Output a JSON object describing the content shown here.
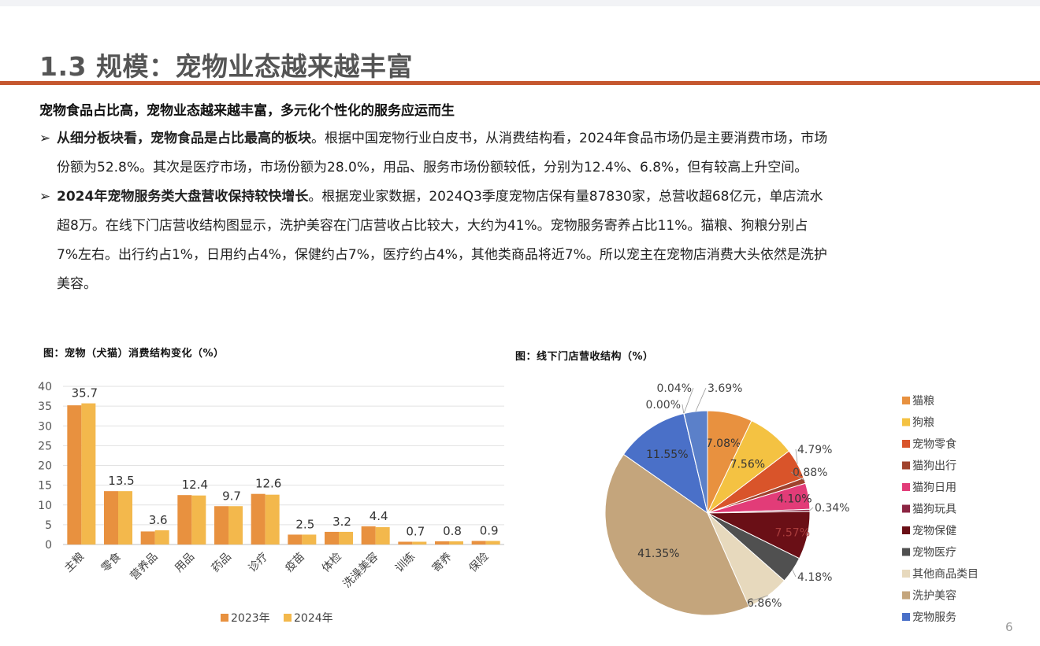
{
  "slide": {
    "title": "1.3 规模：宠物业态越来越丰富",
    "intro_heading": "宠物食品占比高，宠物业态越来越丰富，多元化个性化的服务应运而生",
    "bullets": [
      {
        "marker": "➢",
        "lead": "从细分板块看，宠物食品是占比最高的板块",
        "line1": "。根据中国宠物行业白皮书，从消费结构看，2024年食品市场仍是主要消费市场，市场",
        "rest": [
          "份额为52.8%。其次是医疗市场，市场份额为28.0%，用品、服务市场份额较低，分别为12.4%、6.8%，但有较高上升空间。"
        ]
      },
      {
        "marker": "➢",
        "lead": "2024年宠物服务类大盘营收保持较快增长",
        "line1": "。根据宠业家数据，2024Q3季度宠物店保有量87830家，总营收超68亿元，单店流水",
        "rest": [
          "超8万。在线下门店营收结构图显示，洗护美容在门店营收占比较大，大约为41%。宠物服务寄养占比11%。猫粮、狗粮分别占",
          "7%左右。出行约占1%，日用约占4%，保健约占7%，医疗约占4%，其他类商品将近7%。所以宠主在宠物店消费大头依然是洗护",
          "美容。"
        ]
      }
    ],
    "page_number": "6"
  },
  "chart_data": [
    {
      "type": "bar",
      "title": "图：宠物（犬猫）消费结构变化（%）",
      "categories": [
        "主粮",
        "零食",
        "营养品",
        "用品",
        "药品",
        "诊疗",
        "疫苗",
        "体检",
        "洗澡美容",
        "训练",
        "寄养",
        "保险"
      ],
      "series": [
        {
          "name": "2023年",
          "color": "#e8913f",
          "values": [
            35.2,
            13.5,
            3.3,
            12.5,
            9.7,
            12.8,
            2.5,
            3.2,
            4.6,
            0.7,
            0.8,
            0.9
          ]
        },
        {
          "name": "2024年",
          "color": "#f3b84c",
          "values": [
            35.7,
            13.5,
            3.6,
            12.4,
            9.7,
            12.6,
            2.5,
            3.2,
            4.4,
            0.7,
            0.8,
            0.9
          ]
        }
      ],
      "data_labels": [
        "35.7",
        "13.5",
        "3.6",
        "12.4",
        "9.7",
        "12.6",
        "2.5",
        "3.2",
        "4.4",
        "0.7",
        "0.8",
        "0.9"
      ],
      "ylim": [
        0,
        40
      ],
      "yticks": [
        "0",
        "5",
        "10",
        "15",
        "20",
        "25",
        "30",
        "35",
        "40"
      ],
      "grid": true,
      "legend_position": "bottom"
    },
    {
      "type": "pie",
      "title": "图：线下门店营收结构（%）",
      "slices": [
        {
          "name": "猫粮",
          "value": 7.08,
          "label": "7.08%",
          "color": "#e8913f"
        },
        {
          "name": "狗粮",
          "value": 7.56,
          "label": "7.56%",
          "color": "#f4c242"
        },
        {
          "name": "宠物零食",
          "value": 4.79,
          "label": "4.79%",
          "color": "#d9542a"
        },
        {
          "name": "猫狗出行",
          "value": 0.88,
          "label": "0.88%",
          "color": "#a0422d"
        },
        {
          "name": "猫狗日用",
          "value": 4.1,
          "label": "4.10%",
          "color": "#e23c78"
        },
        {
          "name": "猫狗玩具",
          "value": 0.34,
          "label": "0.34%",
          "color": "#8c2543"
        },
        {
          "name": "宠物保健",
          "value": 7.57,
          "label": "7.57%",
          "color": "#6a0f16"
        },
        {
          "name": "宠物医疗",
          "value": 4.18,
          "label": "4.18%",
          "color": "#505050"
        },
        {
          "name": "其他商品类目",
          "value": 6.86,
          "label": "6.86%",
          "color": "#e7d9bd"
        },
        {
          "name": "洗护美容",
          "value": 41.35,
          "label": "41.35%",
          "color": "#c4a57c"
        },
        {
          "name": "宠物服务",
          "value": 11.55,
          "label": "11.55%",
          "color": "#4a70c8"
        },
        {
          "name": "",
          "value": 0.0,
          "label": "0.00%",
          "color": "#cccccc"
        },
        {
          "name": "",
          "value": 0.04,
          "label": "0.04%",
          "color": "#bbbbbb"
        },
        {
          "name": "",
          "value": 3.69,
          "label": "3.69%",
          "color": "#5b80c9"
        }
      ],
      "legend_position": "right"
    }
  ]
}
